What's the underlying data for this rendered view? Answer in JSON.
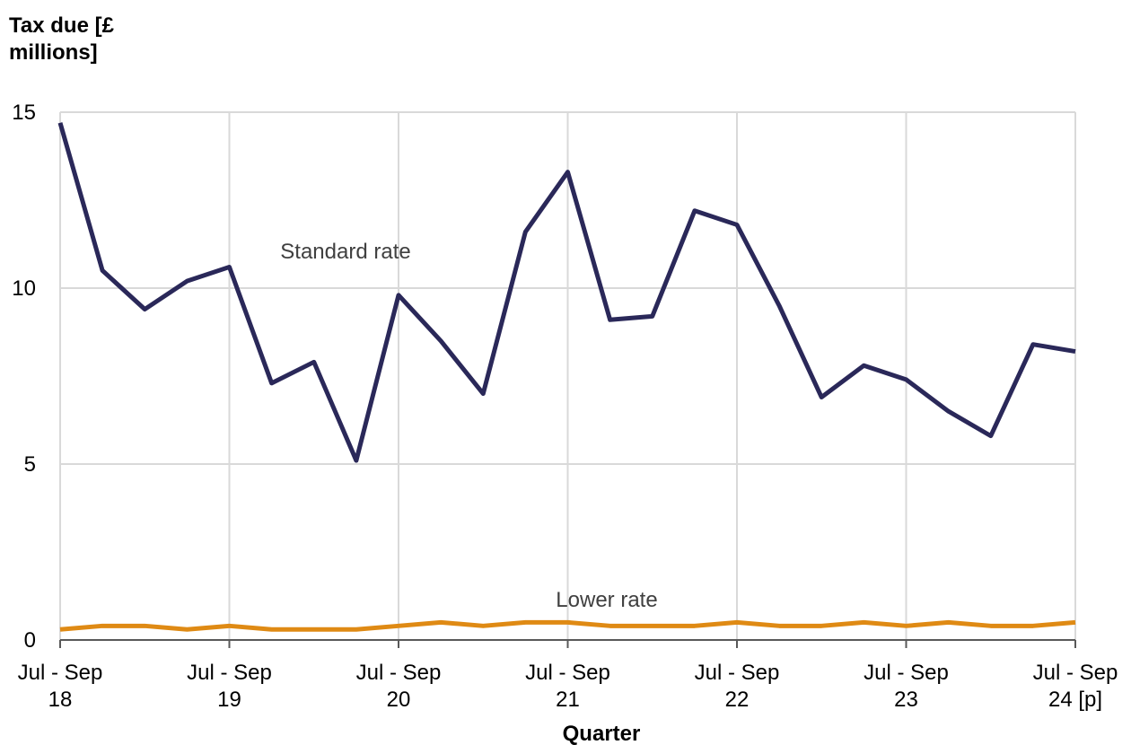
{
  "chart_data": {
    "type": "line",
    "y_label": "Tax due [£\nmillions]",
    "x_label": "Quarter",
    "categories": [
      "Jul - Sep\n18",
      null,
      null,
      null,
      "Jul - Sep\n19",
      null,
      null,
      null,
      "Jul - Sep\n20",
      null,
      null,
      null,
      "Jul - Sep\n21",
      null,
      null,
      null,
      "Jul - Sep\n22",
      null,
      null,
      null,
      "Jul - Sep\n23",
      null,
      null,
      null,
      "Jul - Sep\n24 [p]"
    ],
    "series": [
      {
        "name": "Standard rate",
        "color": "#2a2859",
        "values": [
          14.7,
          10.5,
          9.4,
          10.2,
          10.6,
          7.3,
          7.9,
          5.1,
          9.8,
          8.5,
          7.0,
          11.6,
          13.3,
          9.1,
          9.2,
          12.2,
          11.8,
          9.5,
          6.9,
          7.8,
          7.4,
          6.5,
          5.8,
          8.4,
          8.2
        ]
      },
      {
        "name": "Lower rate",
        "color": "#df8a14",
        "values": [
          0.3,
          0.4,
          0.4,
          0.3,
          0.4,
          0.3,
          0.3,
          0.3,
          0.4,
          0.5,
          0.4,
          0.5,
          0.5,
          0.4,
          0.4,
          0.4,
          0.5,
          0.4,
          0.4,
          0.5,
          0.4,
          0.5,
          0.4,
          0.4,
          0.5
        ]
      }
    ],
    "ylim": [
      0,
      15
    ],
    "yticks": [
      0,
      5,
      10,
      15
    ],
    "grid": true
  }
}
